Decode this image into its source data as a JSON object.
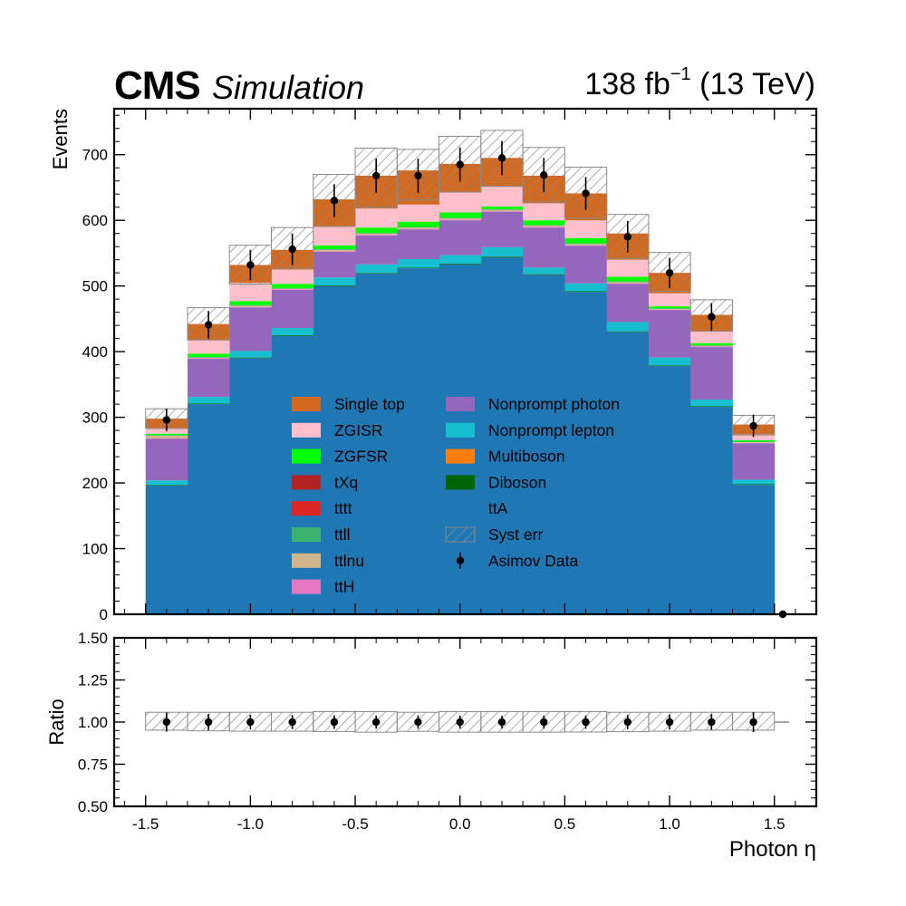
{
  "header": {
    "experiment": "CMS",
    "status": "Simulation",
    "lumi_value": "138 fb",
    "lumi_exp": "−1",
    "energy": " (13 TeV)"
  },
  "chart_data": [
    {
      "type": "area",
      "subtype": "stacked-histogram",
      "ylabel": "Events",
      "xlim": [
        -1.65,
        1.7
      ],
      "ylim": [
        0,
        770
      ],
      "bin_edges": [
        -1.5,
        -1.3,
        -1.1,
        -0.9,
        -0.7,
        -0.5,
        -0.3,
        -0.1,
        0.1,
        0.3,
        0.5,
        0.7,
        0.9,
        1.1,
        1.3,
        1.5
      ],
      "series": [
        {
          "name": "",
          "color": "#1f77b4",
          "values": [
            196,
            320,
            390,
            424,
            500,
            519,
            527,
            533,
            544,
            517,
            491,
            430,
            378,
            316,
            197
          ]
        },
        {
          "name": "Diboson",
          "color": "#006400",
          "values": [
            1,
            1,
            1,
            1,
            1,
            1,
            1,
            1,
            1,
            1,
            1,
            1,
            1,
            1,
            1
          ]
        },
        {
          "name": "Nonprompt lepton",
          "color": "#17becf",
          "values": [
            7,
            10,
            10,
            11,
            12,
            13,
            13,
            13,
            14,
            10,
            12,
            14,
            12,
            10,
            7
          ]
        },
        {
          "name": "Nonprompt photon",
          "color": "#9467bd",
          "values": [
            63,
            58,
            66,
            58,
            39,
            44,
            45,
            53,
            54,
            61,
            57,
            58,
            72,
            80,
            55
          ]
        },
        {
          "name": "ttH",
          "color": "#e377c2",
          "values": [
            1,
            1,
            1,
            1,
            1,
            1,
            1,
            1,
            1,
            1,
            1,
            1,
            1,
            1,
            1
          ]
        },
        {
          "name": "ttlnu",
          "color": "#d2b48c",
          "values": [
            4,
            1,
            2,
            1,
            2,
            2,
            2,
            2,
            2,
            2,
            2,
            2,
            1,
            1,
            1
          ]
        },
        {
          "name": "ttll",
          "color": "#3cb371",
          "values": [
            1,
            1,
            1,
            1,
            1,
            1,
            1,
            1,
            1,
            1,
            1,
            1,
            1,
            1,
            1
          ]
        },
        {
          "name": "ZGFSR",
          "color": "#00ff00",
          "values": [
            2,
            5,
            6,
            6,
            6,
            8,
            8,
            8,
            4,
            7,
            8,
            7,
            3,
            3,
            2
          ]
        },
        {
          "name": "ZGISR",
          "color": "#ffc0cb",
          "values": [
            8,
            20,
            28,
            22,
            28,
            29,
            26,
            31,
            30,
            26,
            27,
            26,
            20,
            18,
            9
          ]
        },
        {
          "name": "Single top",
          "color": "#d2691e",
          "values": [
            15,
            25,
            27,
            30,
            42,
            50,
            52,
            43,
            44,
            42,
            41,
            40,
            31,
            25,
            15
          ]
        }
      ],
      "legend_order": [
        "Single top",
        "ZGISR",
        "ZGFSR",
        "tXq",
        "tttt",
        "ttll",
        "ttlnu",
        "ttH",
        "Nonprompt photon",
        "Nonprompt lepton",
        "Multiboson",
        "Diboson",
        "ttA",
        "Syst err",
        "Asimov Data"
      ],
      "legend_colors": {
        "Single top": "#d2691e",
        "ZGISR": "#ffc0cb",
        "ZGFSR": "#00ff00",
        "tXq": "#b22222",
        "tttt": "#dc2626",
        "ttll": "#3cb371",
        "ttlnu": "#d2b48c",
        "ttH": "#e377c2",
        "Nonprompt photon": "#9467bd",
        "Nonprompt lepton": "#17becf",
        "Multiboson": "#ff7f0e",
        "Diboson": "#006400",
        "ttA": ""
      },
      "legend_placement": "lower-center",
      "syst_err_upper": [
        313,
        467,
        562,
        589,
        670,
        710,
        708,
        728,
        737,
        711,
        681,
        609,
        551,
        479,
        303
      ],
      "syst_err_lower": [
        283,
        418,
        503,
        527,
        591,
        620,
        631,
        643,
        652,
        628,
        603,
        542,
        492,
        431,
        273
      ],
      "data": {
        "name": "Asimov Data",
        "x": [
          -1.4,
          -1.2,
          -1.0,
          -0.8,
          -0.6,
          -0.4,
          -0.2,
          0.0,
          0.2,
          0.4,
          0.6,
          0.8,
          1.0,
          1.2,
          1.4,
          1.54
        ],
        "y": [
          296,
          441,
          532,
          556,
          630,
          668,
          668,
          685,
          695,
          669,
          641,
          575,
          520,
          453,
          287,
          0
        ],
        "yerr": [
          17,
          21,
          23,
          24,
          25,
          26,
          26,
          26,
          26,
          26,
          25,
          24,
          23,
          21,
          17,
          0
        ]
      },
      "xticks": [
        -1.5,
        -1.0,
        -0.5,
        0.0,
        0.5,
        1.0,
        1.5
      ],
      "yticks": [
        0,
        100,
        200,
        300,
        400,
        500,
        600,
        700
      ],
      "ytick_labels": [
        "0",
        "100",
        "200",
        "300",
        "400",
        "500",
        "600",
        "700"
      ]
    },
    {
      "type": "scatter",
      "subtype": "ratio",
      "ylabel": "Ratio",
      "xlabel": "Photon η",
      "xlim": [
        -1.65,
        1.7
      ],
      "ylim": [
        0.5,
        1.5
      ],
      "yticks": [
        0.5,
        0.75,
        1.0,
        1.25,
        1.5
      ],
      "ytick_labels": [
        "0.50",
        "0.75",
        "1.00",
        "1.25",
        "1.50"
      ],
      "xticks": [
        -1.5,
        -1.0,
        -0.5,
        0.0,
        0.5,
        1.0,
        1.5
      ],
      "xtick_labels": [
        "-1.5",
        "-1.0",
        "-0.5",
        "0.0",
        "0.5",
        "1.0",
        "1.5"
      ],
      "band_upper": [
        1.058,
        1.058,
        1.058,
        1.058,
        1.062,
        1.062,
        1.058,
        1.062,
        1.062,
        1.062,
        1.062,
        1.058,
        1.058,
        1.058,
        1.058
      ],
      "band_lower": [
        0.952,
        0.948,
        0.946,
        0.946,
        0.944,
        0.94,
        0.945,
        0.94,
        0.94,
        0.94,
        0.941,
        0.943,
        0.946,
        0.952,
        0.952
      ],
      "x": [
        -1.4,
        -1.2,
        -1.0,
        -0.8,
        -0.6,
        -0.4,
        -0.2,
        0.0,
        0.2,
        0.4,
        0.6,
        0.8,
        1.0,
        1.2,
        1.4
      ],
      "y": [
        1,
        1,
        1,
        1,
        1,
        1,
        1,
        1,
        1,
        1,
        1,
        1,
        1,
        1,
        1
      ],
      "yerr": [
        0.057,
        0.048,
        0.043,
        0.042,
        0.04,
        0.039,
        0.039,
        0.038,
        0.037,
        0.039,
        0.039,
        0.042,
        0.044,
        0.047,
        0.059
      ]
    }
  ]
}
